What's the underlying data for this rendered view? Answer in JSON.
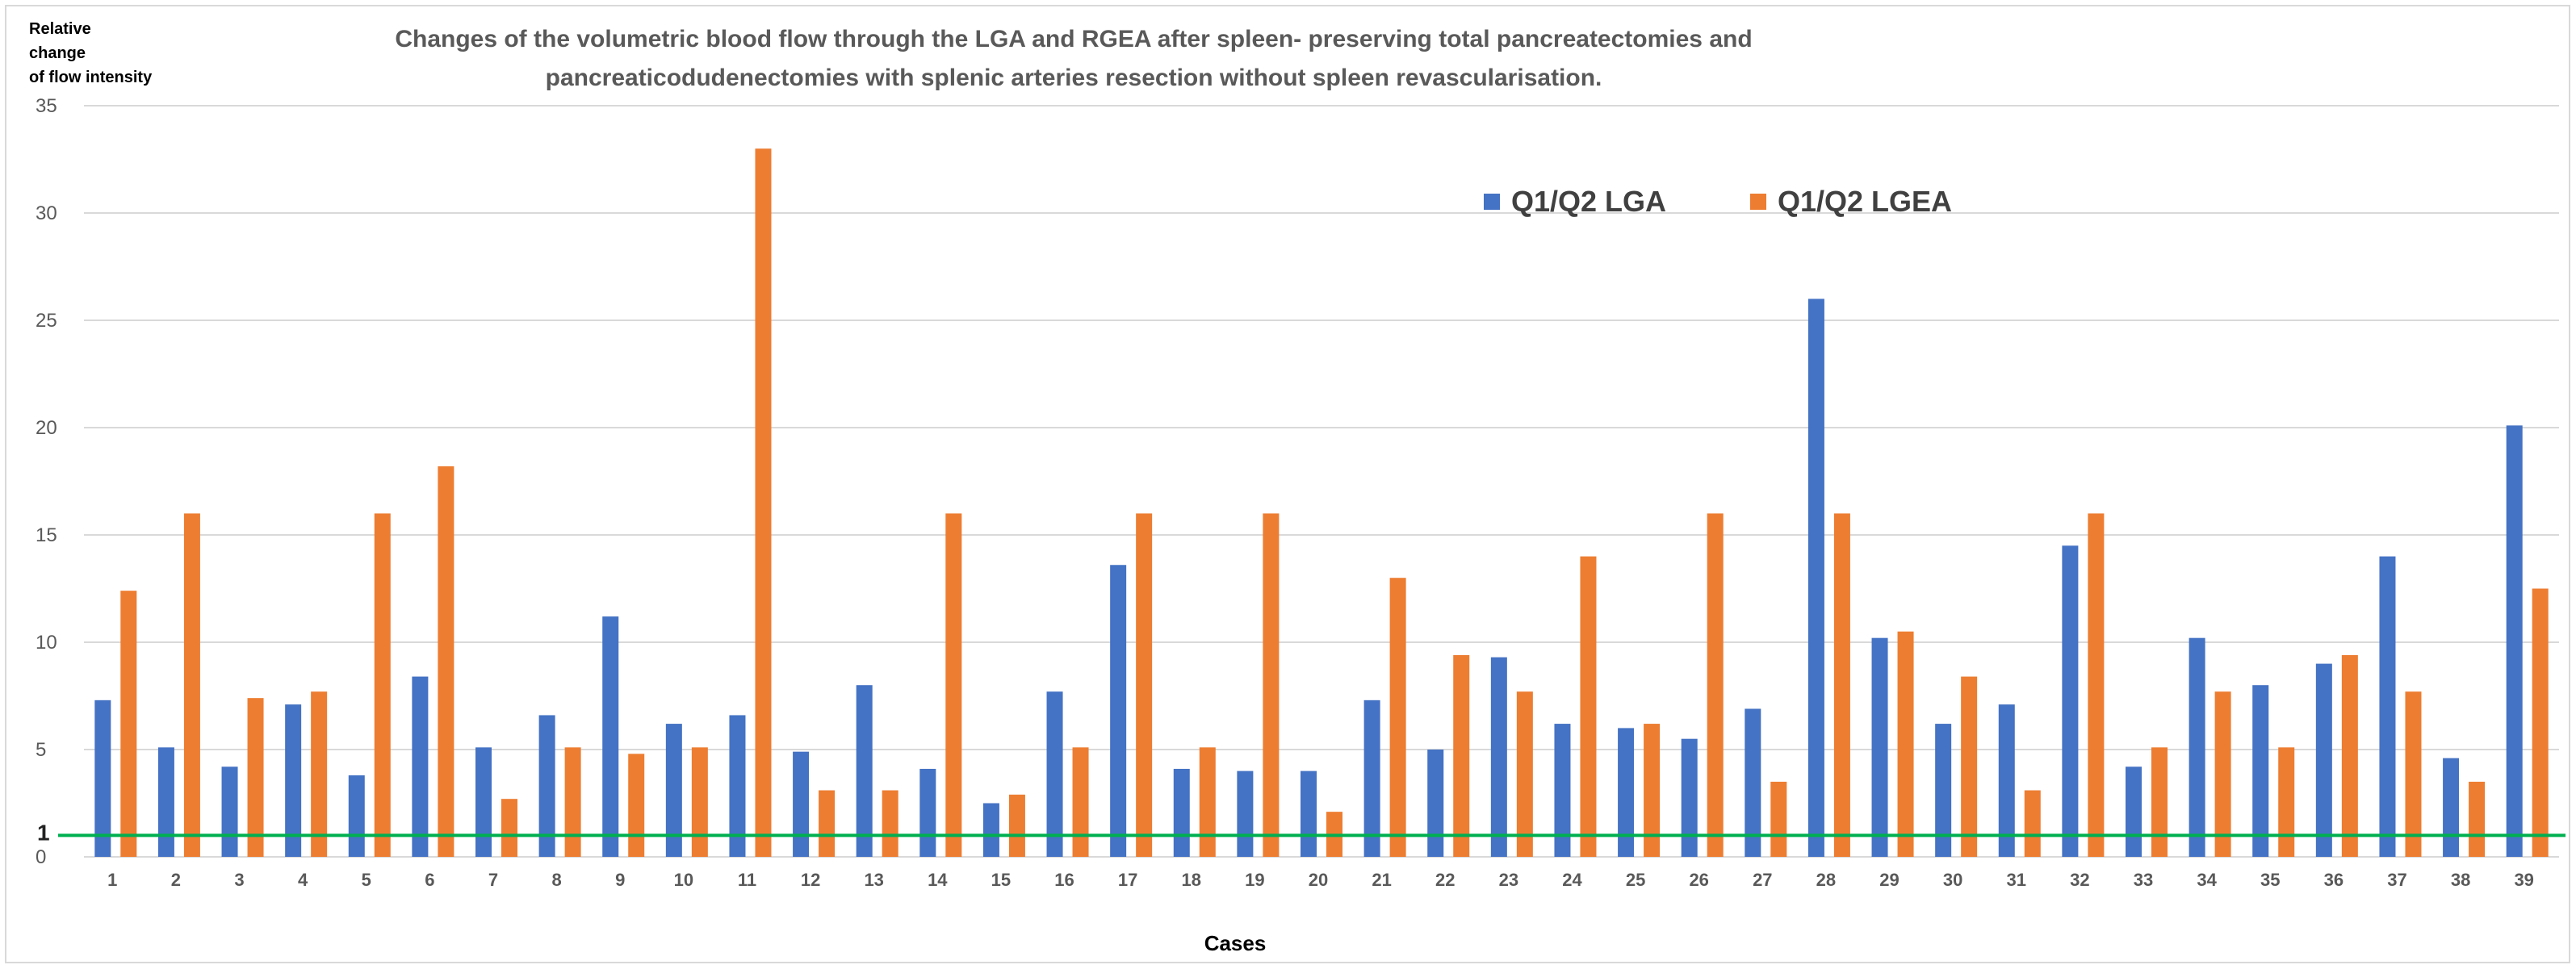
{
  "chart_data": {
    "type": "bar",
    "title_lines": [
      "Changes of the volumetric blood flow through the LGA and RGEA after spleen- preserving total pancreatectomies and",
      "pancreaticodudenectomies with splenic arteries resection without spleen revascularisation."
    ],
    "ylabel_lines": [
      "Relative",
      "change",
      "of flow intensity"
    ],
    "xlabel": "Cases",
    "ylim": [
      0,
      35
    ],
    "yticks": [
      0,
      5,
      10,
      15,
      20,
      25,
      30,
      35
    ],
    "yticks_labels": [
      "0",
      "5",
      "10",
      "15",
      "20",
      "25",
      "30",
      "35"
    ],
    "reference_line": {
      "value": 1,
      "label": "1",
      "color": "#00b050"
    },
    "grid": true,
    "legend_position": "top-center",
    "categories": [
      "1",
      "2",
      "3",
      "4",
      "5",
      "6",
      "7",
      "8",
      "9",
      "10",
      "11",
      "12",
      "13",
      "14",
      "15",
      "16",
      "17",
      "18",
      "19",
      "20",
      "21",
      "22",
      "23",
      "24",
      "25",
      "26",
      "27",
      "28",
      "29",
      "30",
      "31",
      "32",
      "33",
      "34",
      "35",
      "36",
      "37",
      "38",
      "39"
    ],
    "series": [
      {
        "name": "Q1/Q2 LGA",
        "color": "#4472c4",
        "values": [
          7.3,
          5.1,
          4.2,
          7.1,
          3.8,
          8.4,
          5.1,
          6.6,
          11.2,
          6.2,
          6.6,
          4.9,
          8.0,
          4.1,
          2.5,
          7.7,
          13.6,
          4.1,
          4.0,
          4.0,
          7.3,
          5.0,
          9.3,
          6.2,
          6.0,
          5.5,
          6.9,
          26.0,
          10.2,
          6.2,
          7.1,
          14.5,
          4.2,
          10.2,
          8.0,
          9.0,
          14.0,
          4.6,
          20.1
        ]
      },
      {
        "name": "Q1/Q2 LGEA",
        "color": "#ed7d31",
        "values": [
          12.4,
          16.0,
          7.4,
          7.7,
          16.0,
          18.2,
          2.7,
          5.1,
          4.8,
          5.1,
          33.0,
          3.1,
          3.1,
          16.0,
          2.9,
          5.1,
          16.0,
          5.1,
          16.0,
          2.1,
          13.0,
          9.4,
          7.7,
          14.0,
          6.2,
          16.0,
          3.5,
          16.0,
          10.5,
          8.4,
          3.1,
          16.0,
          5.1,
          7.7,
          5.1,
          9.4,
          7.7,
          3.5,
          12.5
        ]
      }
    ]
  }
}
